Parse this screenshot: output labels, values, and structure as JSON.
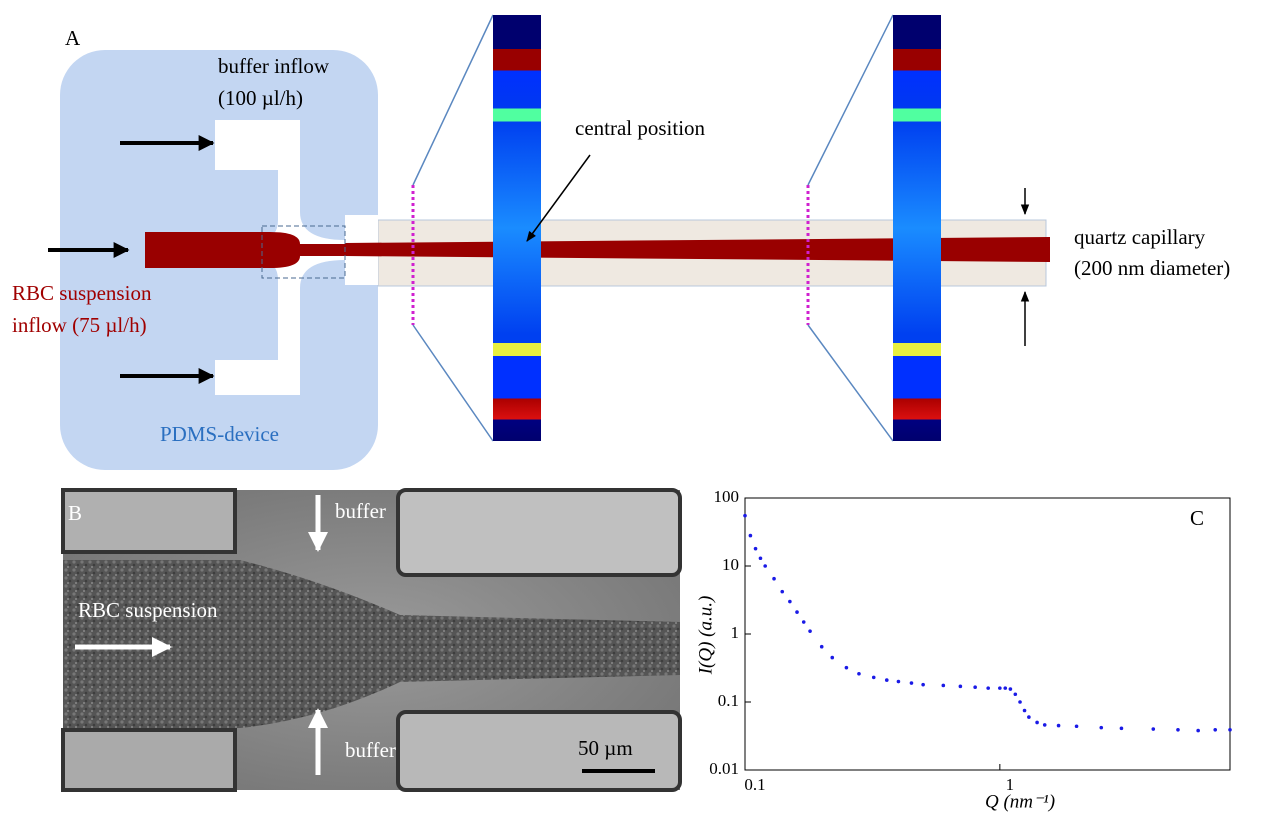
{
  "panel_a": {
    "label": "A",
    "buffer_inflow": "buffer inflow",
    "buffer_rate": "(100 µl/h)",
    "rbc_line1": "RBC suspension",
    "rbc_line2": "inflow (75 µl/h)",
    "device": "PDMS-device",
    "central": "central position",
    "capillary_line1": "quartz capillary",
    "capillary_line2": "(200 nm diameter)"
  },
  "panel_b": {
    "label": "B",
    "buffer_top": "buffer",
    "rbc": "RBC suspension",
    "buffer_bottom": "buffer",
    "scale": "50 µm"
  },
  "chart_data": {
    "type": "scatter",
    "panel_label": "C",
    "x_label": "Q (nm⁻¹)",
    "y_label": "I(Q) (a.u.)",
    "x": [
      0.1,
      0.105,
      0.11,
      0.115,
      0.12,
      0.13,
      0.14,
      0.15,
      0.16,
      0.17,
      0.18,
      0.2,
      0.22,
      0.25,
      0.28,
      0.32,
      0.36,
      0.4,
      0.45,
      0.5,
      0.6,
      0.7,
      0.8,
      0.9,
      1.0,
      1.05,
      1.1,
      1.15,
      1.2,
      1.25,
      1.3,
      1.4,
      1.5,
      1.7,
      2,
      2.5,
      3,
      4,
      5,
      6,
      7,
      8
    ],
    "series": [
      {
        "color": "#1a1ae6",
        "values": [
          55,
          28,
          18,
          13,
          10,
          6.5,
          4.2,
          3,
          2.1,
          1.5,
          1.1,
          0.65,
          0.45,
          0.32,
          0.26,
          0.23,
          0.21,
          0.2,
          0.19,
          0.18,
          0.175,
          0.17,
          0.165,
          0.16,
          0.16,
          0.16,
          0.155,
          0.13,
          0.1,
          0.075,
          0.06,
          0.05,
          0.046,
          0.045,
          0.044,
          0.042,
          0.041,
          0.04,
          0.039,
          0.038,
          0.039,
          0.039
        ]
      }
    ],
    "xlim": [
      0.1,
      8
    ],
    "ylim": [
      0.01,
      100
    ],
    "xticks": [
      0.1,
      1
    ],
    "yticks": [
      0.01,
      0.1,
      1,
      10,
      100
    ],
    "log_x": true,
    "log_y": true
  }
}
